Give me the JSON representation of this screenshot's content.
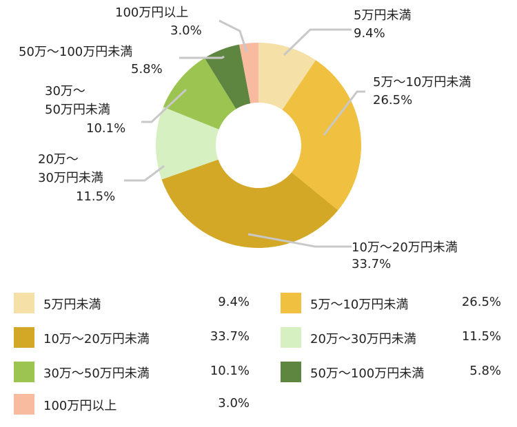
{
  "chart_data": {
    "type": "pie",
    "variant": "donut",
    "title": "",
    "categories": [
      "5万円未満",
      "5万〜10万円未満",
      "10万〜20万円未満",
      "20万〜30万円未満",
      "30万〜50万円未満",
      "50万〜100万円未満",
      "100万円以上"
    ],
    "values": [
      9.4,
      26.5,
      33.7,
      11.5,
      10.1,
      5.8,
      3.0
    ],
    "value_labels": [
      "9.4%",
      "26.5%",
      "33.7%",
      "11.5%",
      "10.1%",
      "5.8%",
      "3.0%"
    ],
    "colors": [
      "#F5E0A8",
      "#F0C040",
      "#D4A827",
      "#D6F0C2",
      "#9BC451",
      "#5E8641",
      "#F9BBA0"
    ],
    "unit": "%",
    "legend_placement": "bottom"
  },
  "callouts": [
    {
      "lines": [
        "5万円未満",
        "9.4%"
      ]
    },
    {
      "lines": [
        "5万〜10万円未満",
        "26.5%"
      ]
    },
    {
      "lines": [
        "10万〜20万円未満",
        "33.7%"
      ]
    },
    {
      "lines": [
        "20万〜",
        "30万円未満",
        "11.5%"
      ]
    },
    {
      "lines": [
        "30万〜",
        "50万円未満",
        "10.1%"
      ]
    },
    {
      "lines": [
        "50万〜100万円未満",
        "5.8%"
      ]
    },
    {
      "lines": [
        "100万円以上",
        "3.0%"
      ]
    }
  ],
  "legend": [
    {
      "label": "5万円未満",
      "value": "9.4%",
      "color": "#F5E0A8"
    },
    {
      "label": "5万〜10万円未満",
      "value": "26.5%",
      "color": "#F0C040"
    },
    {
      "label": "10万〜20万円未満",
      "value": "33.7%",
      "color": "#D4A827"
    },
    {
      "label": "20万〜30万円未満",
      "value": "11.5%",
      "color": "#D6F0C2"
    },
    {
      "label": "30万〜50万円未満",
      "value": "10.1%",
      "color": "#9BC451"
    },
    {
      "label": "50万〜100万円未満",
      "value": "5.8%",
      "color": "#5E8641"
    },
    {
      "label": "100万円以上",
      "value": "3.0%",
      "color": "#F9BBA0"
    }
  ]
}
